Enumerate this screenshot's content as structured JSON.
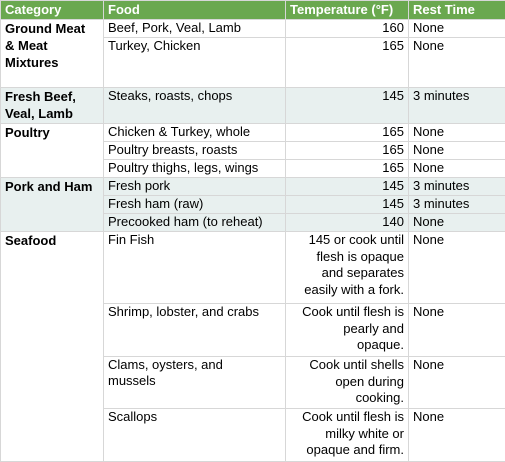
{
  "headers": {
    "category": "Category",
    "food": "Food",
    "temperature": "Temperature (°F)",
    "rest_time": "Rest Time"
  },
  "groups": [
    {
      "category": [
        "Ground Meat",
        "& Meat",
        "Mixtures"
      ],
      "rows": [
        {
          "food": "Beef, Pork, Veal, Lamb",
          "temperature": "160",
          "rest": "None"
        },
        {
          "food": "Turkey, Chicken",
          "temperature": "165",
          "rest": "None"
        }
      ]
    },
    {
      "category": [
        "Fresh Beef,",
        "Veal, Lamb"
      ],
      "rows": [
        {
          "food": "Steaks, roasts, chops",
          "temperature": "145",
          "rest": "3 minutes"
        }
      ]
    },
    {
      "category": [
        "Poultry"
      ],
      "rows": [
        {
          "food": "Chicken & Turkey, whole",
          "temperature": "165",
          "rest": "None"
        },
        {
          "food": "Poultry breasts, roasts",
          "temperature": "165",
          "rest": "None"
        },
        {
          "food": "Poultry thighs, legs, wings",
          "temperature": "165",
          "rest": "None"
        }
      ]
    },
    {
      "category": [
        "Pork and Ham"
      ],
      "rows": [
        {
          "food": "Fresh pork",
          "temperature": "145",
          "rest": "3 minutes"
        },
        {
          "food": "Fresh ham (raw)",
          "temperature": "145",
          "rest": "3 minutes"
        },
        {
          "food": "Precooked ham (to reheat)",
          "temperature": "140",
          "rest": "None"
        }
      ]
    },
    {
      "category": [
        "Seafood"
      ],
      "rows": [
        {
          "food": [
            "Fin Fish"
          ],
          "temperature": [
            "145 or cook until",
            "flesh is opaque",
            "and separates",
            "easily with a fork."
          ],
          "rest": "None"
        },
        {
          "food": [
            "Shrimp, lobster, and crabs"
          ],
          "temperature": [
            "Cook until flesh is",
            "pearly and",
            "opaque."
          ],
          "rest": "None"
        },
        {
          "food": [
            "Clams, oysters, and",
            "mussels"
          ],
          "temperature": [
            "Cook until shells",
            "open during",
            "cooking."
          ],
          "rest": "None"
        },
        {
          "food": [
            "Scallops"
          ],
          "temperature": [
            "Cook until flesh is",
            "milky white or",
            "opaque and firm."
          ],
          "rest": "None"
        }
      ]
    }
  ]
}
